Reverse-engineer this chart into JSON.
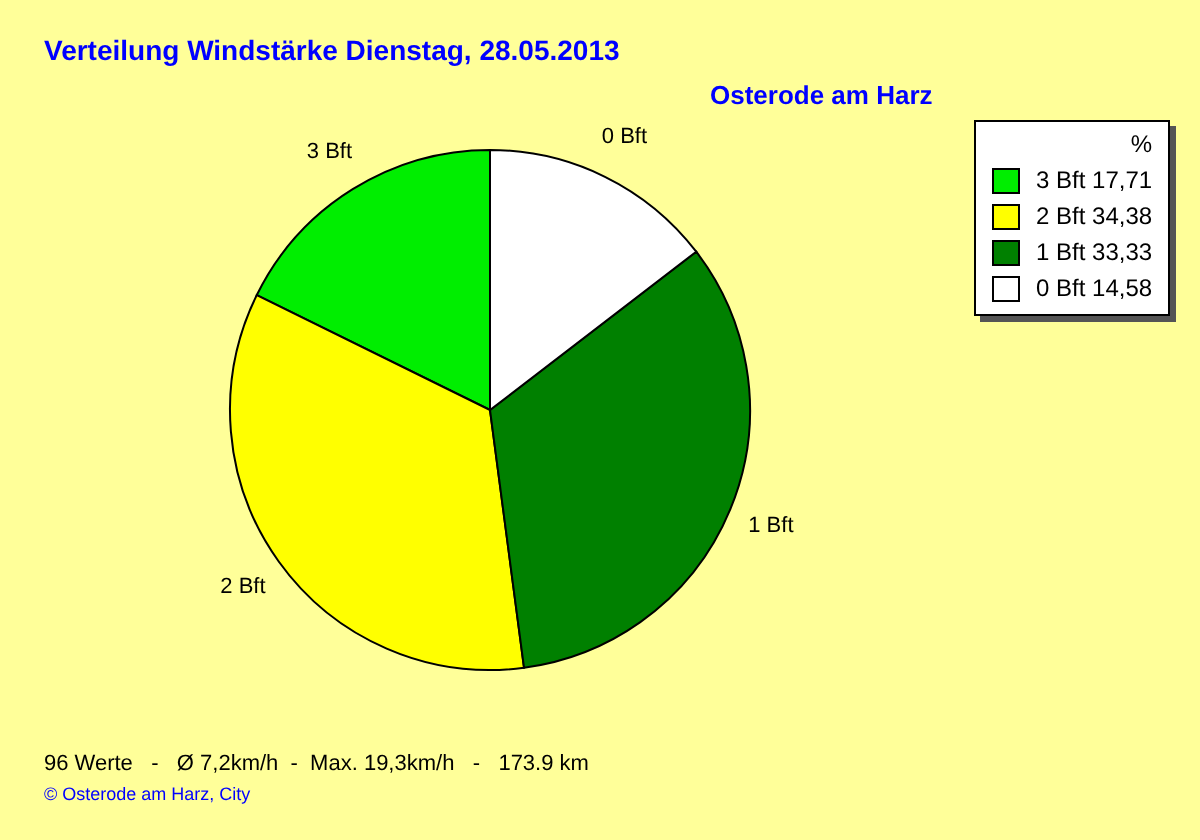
{
  "chart_data": {
    "type": "pie",
    "title": "Verteilung Windstärke  Dienstag, 28.05.2013",
    "subtitle": "Osterode am Harz",
    "legend_title": "%",
    "categories": [
      "3 Bft",
      "2 Bft",
      "1 Bft",
      "0 Bft"
    ],
    "values": [
      17.71,
      34.38,
      33.33,
      14.58
    ],
    "value_labels": [
      "17,71",
      "34,38",
      "33,33",
      "14,58"
    ],
    "colors": [
      "#00ee00",
      "#ffff00",
      "#008000",
      "#ffffff"
    ],
    "legend": "top right",
    "annotations": [
      "96 Werte   -   Ø 7,2km/h  -  Max. 19,3km/h   -   173.9 km",
      "© Osterode am Harz, City"
    ]
  }
}
